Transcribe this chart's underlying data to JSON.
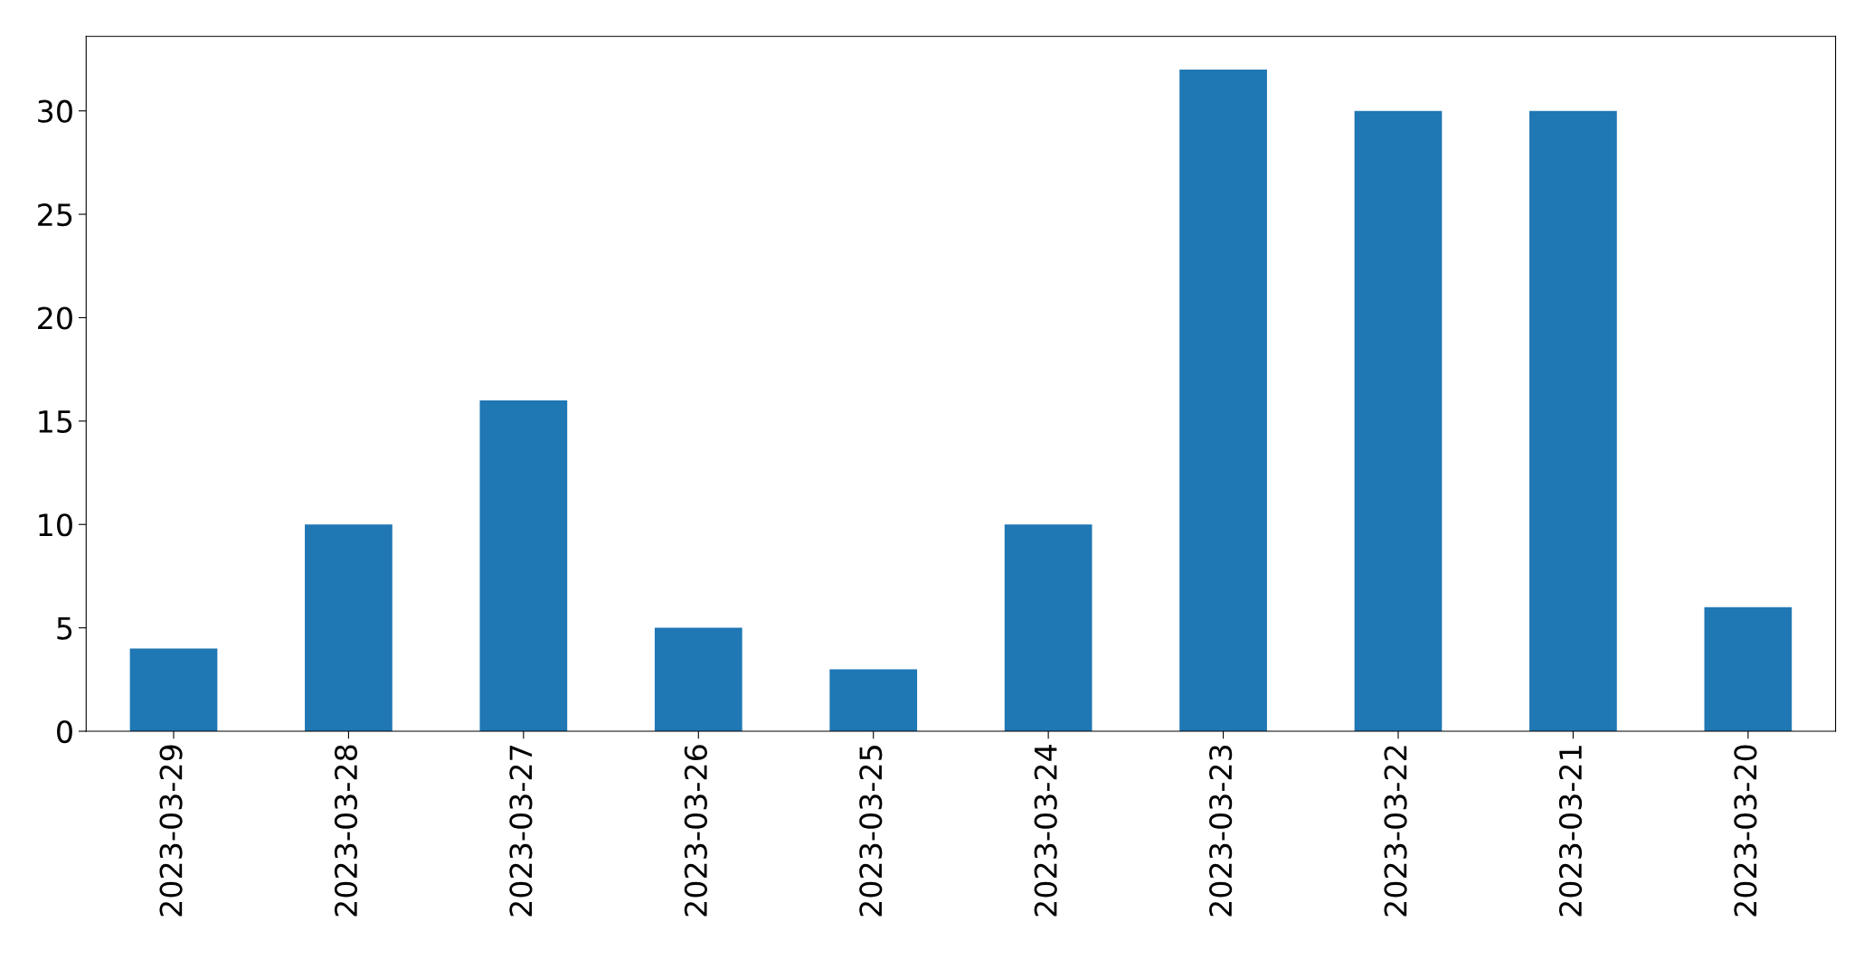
{
  "chart_data": {
    "type": "bar",
    "categories": [
      "2023-03-29",
      "2023-03-28",
      "2023-03-27",
      "2023-03-26",
      "2023-03-25",
      "2023-03-24",
      "2023-03-23",
      "2023-03-22",
      "2023-03-21",
      "2023-03-20"
    ],
    "values": [
      4,
      10,
      16,
      5,
      3,
      10,
      32,
      30,
      30,
      6
    ],
    "color": "#1f77b4",
    "ylim": [
      0,
      33.6
    ],
    "yticks": [
      0,
      5,
      10,
      15,
      20,
      25,
      30
    ],
    "grid": false
  }
}
